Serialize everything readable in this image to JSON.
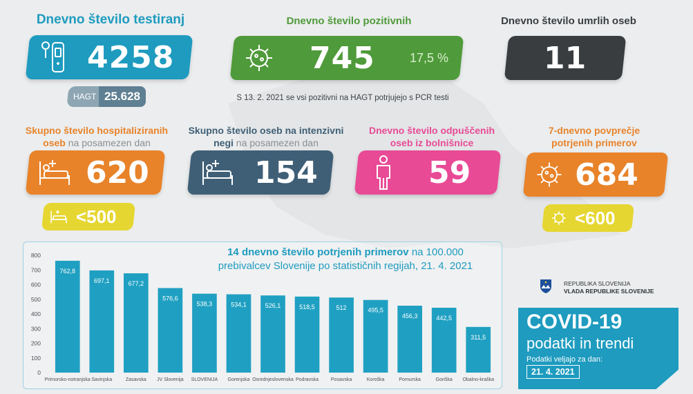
{
  "testing": {
    "title": "Dnevno število testiranj",
    "value": "4258",
    "hagt_label": "HAGT",
    "hagt_value": "25.628"
  },
  "positive": {
    "title": "Dnevno število pozitivnih",
    "value": "745",
    "percent": "17,5 %",
    "note": "S 13. 2. 2021 se vsi pozitivni na HAGT potrjujejo s PCR testi"
  },
  "deaths": {
    "title": "Dnevno število umrlih oseb",
    "value": "11"
  },
  "hospitalized": {
    "title": "Skupno število hospitaliziranih",
    "title_line2": "oseb",
    "title_light": " na posamezen dan",
    "value": "620",
    "target": "<500"
  },
  "icu": {
    "title": "Skupno število oseb na intenzivni",
    "title_line2": "negi",
    "title_light": " na posamezen dan",
    "value": "154"
  },
  "discharged": {
    "title": "Dnevno število odpuščenih",
    "title_line2": "oseb iz bolnišnice",
    "value": "59"
  },
  "avg7": {
    "title": "7-dnevno povprečje",
    "title_line2": "potrjenih primerov",
    "value": "684",
    "target": "<600"
  },
  "chart_title": {
    "bold": "14 dnevno število potrjenih primerov",
    "normal": " na 100.000",
    "line2": "prebivalcev Slovenije po statističnih regijah, 21. 4. 2021"
  },
  "chart_data": {
    "type": "bar",
    "categories": [
      "Primorsko-notranjska",
      "Savinjska",
      "Zasavska",
      "JV Slovenija",
      "SLOVENIJA",
      "Gorenjska",
      "Osrednjeslovenska",
      "Podravska",
      "Posavska",
      "Koroška",
      "Pomurska",
      "Goriška",
      "Obalno-kraška"
    ],
    "values": [
      762.8,
      697.1,
      677.2,
      576.6,
      538.3,
      534.1,
      526.1,
      518.5,
      512,
      495.5,
      456.3,
      442.5,
      311.5
    ],
    "value_labels": [
      "762,8",
      "697,1",
      "677,2",
      "576,6",
      "538,3",
      "534,1",
      "526,1",
      "518,5",
      "512",
      "495,5",
      "456,3",
      "442,5",
      "311,5"
    ],
    "yticks": [
      "0",
      "100",
      "200",
      "300",
      "400",
      "500",
      "600",
      "700",
      "800"
    ],
    "ylim": [
      0,
      800
    ]
  },
  "gov": {
    "line1": "REPUBLIKA SLOVENIJA",
    "line2": "VLADA REPUBLIKE SLOVENIJE"
  },
  "covid_box": {
    "title": "COVID-19",
    "subtitle": "podatki in trendi",
    "valid_label": "Podatki veljajo za dan:",
    "date": "21. 4. 2021"
  },
  "colors": {
    "blue": "#1e9bbf",
    "green": "#4f9a3a",
    "dark": "#3a3d40",
    "orange": "#e8832a",
    "slate": "#3f5f76",
    "pink": "#e84a96",
    "yellow": "#e6d631"
  }
}
